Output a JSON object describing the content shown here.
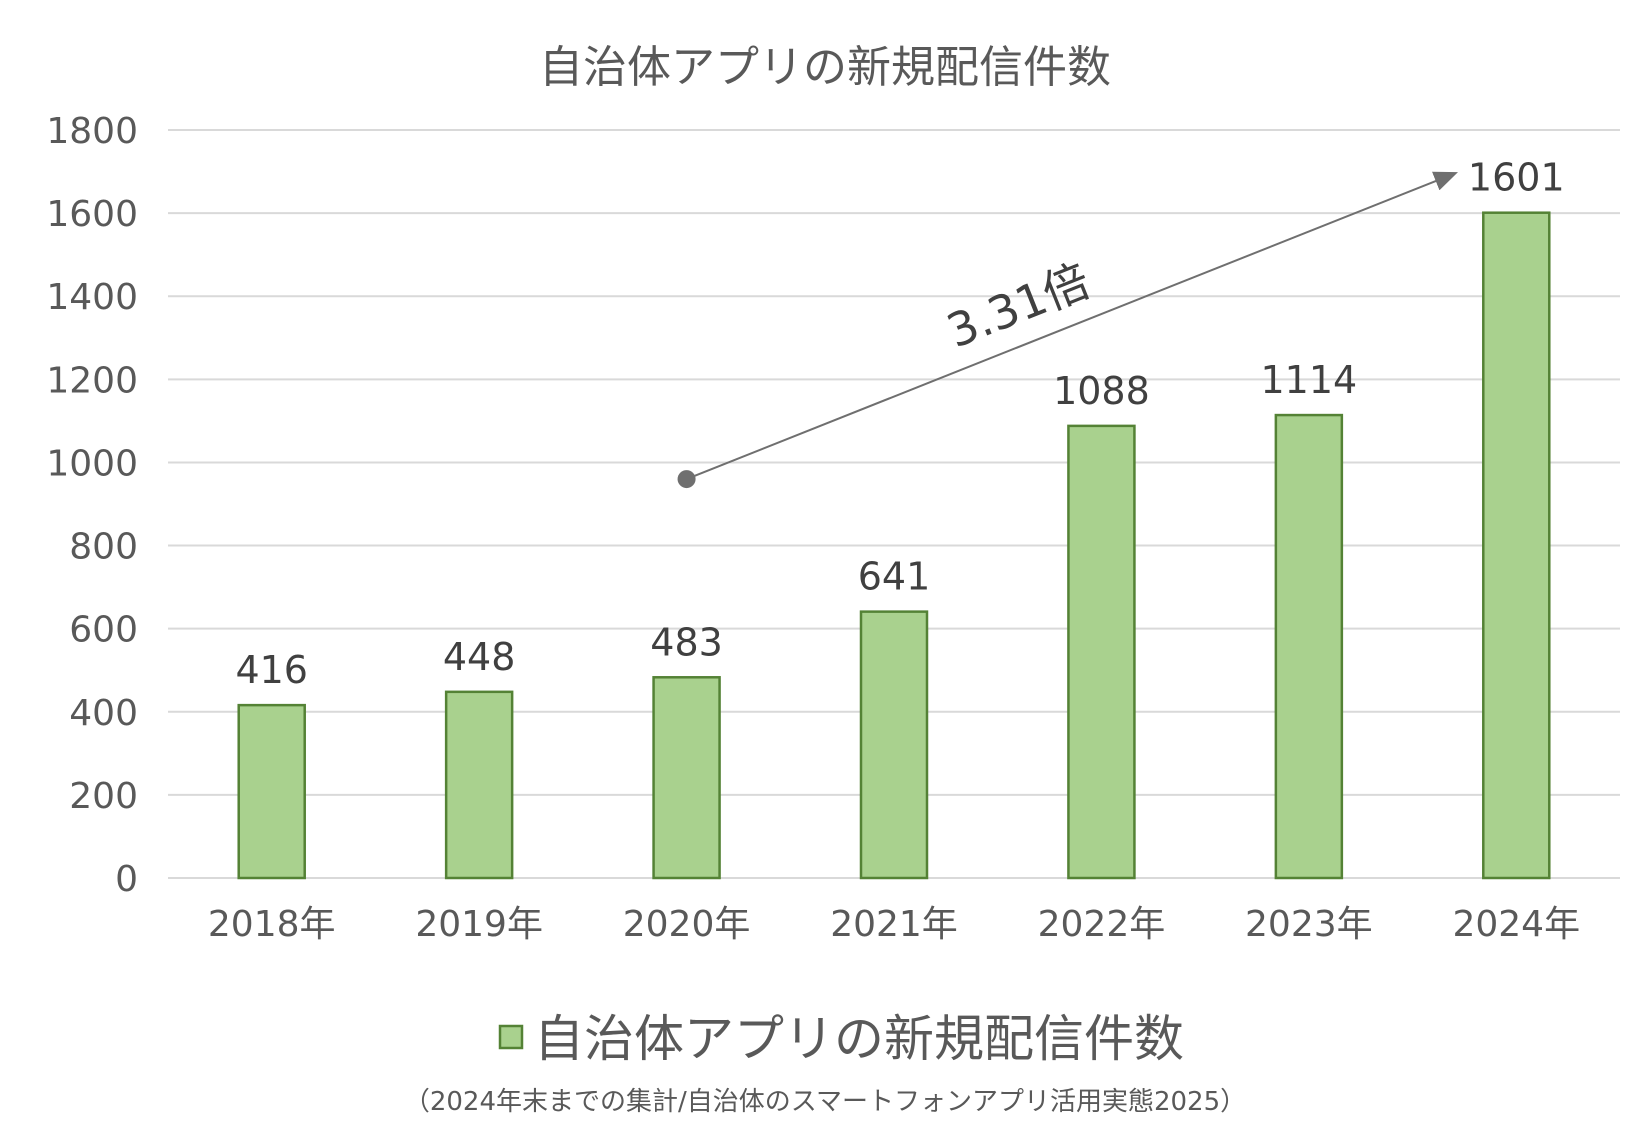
{
  "chart_data": {
    "type": "bar",
    "title": "自治体アプリの新規配信件数",
    "categories": [
      "2018年",
      "2019年",
      "2020年",
      "2021年",
      "2022年",
      "2023年",
      "2024年"
    ],
    "series": [
      {
        "name": "自治体アプリの新規配信件数",
        "values": [
          416,
          448,
          483,
          641,
          1088,
          1114,
          1601
        ],
        "color": "#a9d18e",
        "border_color": "#548235"
      }
    ],
    "data_labels": [
      "416",
      "448",
      "483",
      "641",
      "1088",
      "1114",
      "1601"
    ],
    "ylim": [
      0,
      1800
    ],
    "yticks": [
      "0",
      "200",
      "400",
      "600",
      "800",
      "1000",
      "1200",
      "1400",
      "1600",
      "1800"
    ],
    "ytick_values": [
      0,
      200,
      400,
      600,
      800,
      1000,
      1200,
      1400,
      1600,
      1800
    ],
    "grid": true,
    "legend_position": "bottom",
    "annotation": {
      "text": "3.31倍",
      "from_category": "2020年",
      "from_value": 960,
      "to_category": "2024年",
      "to_value": 1695,
      "arrow_color": "#6f6f6f"
    },
    "xlabel": "",
    "ylabel": ""
  },
  "source_note": "（2024年末までの集計/自治体のスマートフォンアプリ活用実態2025）"
}
